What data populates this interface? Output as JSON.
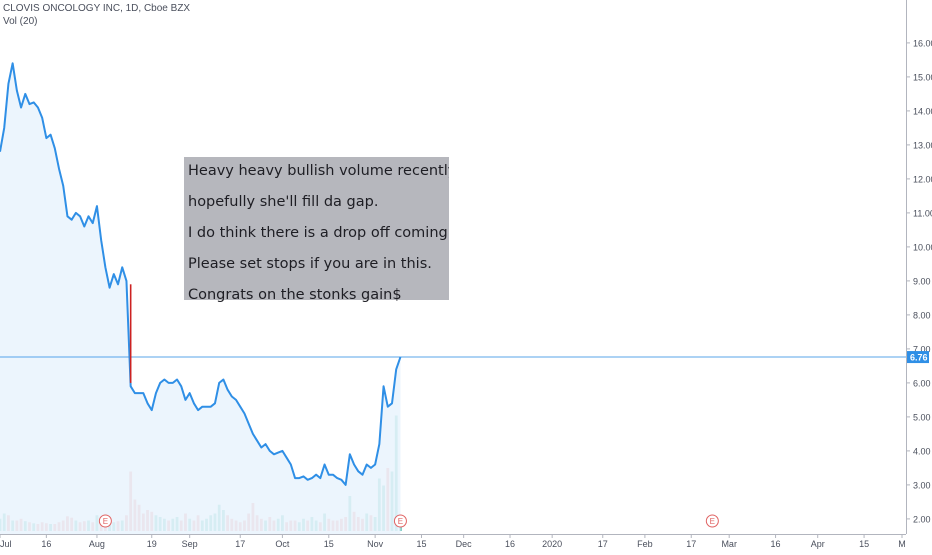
{
  "legend": {
    "title": "CLOVIS ONCOLOGY INC, 1D, Cboe BZX",
    "volume": "Vol (20)"
  },
  "note_lines": [
    "Heavy heavy bullish volume recently,",
    "hopefully she'll fill da gap.",
    "I do think there is a drop off coming soon",
    "Please set stops if you are in this.",
    "Congrats on the stonks gain$"
  ],
  "colors": {
    "line": "#2f8fe6",
    "area": "#e9f3fd",
    "vol_up": "#6fc7bd",
    "vol_down": "#f09a9a",
    "price_tag": "#2f8fe6",
    "annotation_line": "#cc2222",
    "earnings": "#e06363"
  },
  "chart_data": {
    "type": "line",
    "title": "CLOVIS ONCOLOGY INC, 1D, Cboe BZX",
    "ylim": [
      1.85,
      16.85
    ],
    "y_ticks": [
      2,
      3,
      4,
      5,
      6,
      7,
      8,
      9,
      10,
      11,
      12,
      13,
      14,
      15,
      16
    ],
    "y_tick_labels": [
      "2.00",
      "3.00",
      "4.00",
      "5.00",
      "6.00",
      "7.00",
      "8.00",
      "9.00",
      "10.00",
      "11.00",
      "12.00",
      "13.00",
      "14.00",
      "15.00",
      "16.00"
    ],
    "last_price": 6.76,
    "last_price_label": "6.76",
    "x_tick_labels": [
      "Jul",
      "16",
      "Aug",
      "19",
      "Sep",
      "17",
      "Oct",
      "15",
      "Nov",
      "15",
      "Dec",
      "16",
      "2020",
      "17",
      "Feb",
      "17",
      "Mar",
      "16",
      "Apr",
      "15",
      "M"
    ],
    "x_tick_index": [
      0,
      11,
      23,
      36,
      45,
      57,
      67,
      78,
      89,
      100,
      110,
      121,
      131,
      143,
      153,
      164,
      173,
      184,
      194,
      205,
      214
    ],
    "close": [
      12.8,
      13.5,
      14.8,
      15.4,
      14.6,
      14.1,
      14.5,
      14.2,
      14.25,
      14.1,
      13.8,
      13.2,
      13.3,
      12.9,
      12.3,
      11.8,
      10.9,
      10.8,
      11.0,
      10.9,
      10.6,
      10.9,
      10.7,
      11.2,
      10.2,
      9.4,
      8.8,
      9.2,
      8.9,
      9.4,
      9.0,
      5.9,
      5.7,
      5.7,
      5.7,
      5.4,
      5.2,
      5.7,
      6.0,
      6.1,
      6.0,
      6.0,
      6.1,
      5.9,
      5.5,
      5.7,
      5.4,
      5.2,
      5.3,
      5.3,
      5.3,
      5.4,
      6.0,
      6.1,
      5.8,
      5.6,
      5.5,
      5.3,
      5.1,
      4.8,
      4.5,
      4.3,
      4.1,
      4.2,
      4.0,
      3.9,
      3.95,
      4.0,
      3.8,
      3.6,
      3.2,
      3.2,
      3.25,
      3.15,
      3.2,
      3.3,
      3.2,
      3.6,
      3.3,
      3.3,
      3.2,
      3.15,
      3.0,
      3.9,
      3.6,
      3.4,
      3.3,
      3.6,
      3.5,
      3.6,
      4.2,
      5.9,
      5.3,
      5.4,
      6.4,
      6.76
    ],
    "volume": [
      0.35,
      0.5,
      0.45,
      0.3,
      0.3,
      0.35,
      0.28,
      0.25,
      0.22,
      0.2,
      0.25,
      0.22,
      0.2,
      0.2,
      0.25,
      0.3,
      0.42,
      0.38,
      0.3,
      0.25,
      0.28,
      0.3,
      0.25,
      0.45,
      0.35,
      0.3,
      0.22,
      0.25,
      0.28,
      0.3,
      0.45,
      1.7,
      0.9,
      0.75,
      0.5,
      0.6,
      0.55,
      0.45,
      0.4,
      0.35,
      0.3,
      0.35,
      0.4,
      0.3,
      0.5,
      0.35,
      0.3,
      0.45,
      0.3,
      0.35,
      0.45,
      0.5,
      0.75,
      0.6,
      0.45,
      0.35,
      0.3,
      0.25,
      0.3,
      0.5,
      0.8,
      0.45,
      0.35,
      0.3,
      0.4,
      0.3,
      0.35,
      0.45,
      0.25,
      0.3,
      0.3,
      0.25,
      0.35,
      0.3,
      0.4,
      0.3,
      0.25,
      0.5,
      0.35,
      0.3,
      0.3,
      0.35,
      0.4,
      1.0,
      0.55,
      0.4,
      0.35,
      0.5,
      0.45,
      0.4,
      1.5,
      1.3,
      1.8,
      1.7,
      3.3,
      0.4
    ],
    "volume_up": [
      1,
      1,
      0,
      1,
      0,
      0,
      1,
      0,
      1,
      0,
      0,
      0,
      1,
      0,
      0,
      0,
      0,
      0,
      1,
      0,
      0,
      1,
      0,
      1,
      0,
      0,
      1,
      1,
      0,
      1,
      0,
      0,
      0,
      0,
      0,
      0,
      0,
      1,
      1,
      1,
      0,
      1,
      1,
      0,
      0,
      1,
      0,
      0,
      1,
      1,
      1,
      1,
      1,
      1,
      0,
      0,
      0,
      0,
      0,
      0,
      0,
      0,
      0,
      1,
      0,
      0,
      1,
      1,
      0,
      0,
      0,
      1,
      1,
      0,
      1,
      1,
      0,
      1,
      0,
      0,
      0,
      0,
      0,
      1,
      0,
      0,
      0,
      1,
      0,
      1,
      1,
      1,
      0,
      1,
      1,
      1
    ],
    "annotation_vline": {
      "x_index": 31,
      "from": 6.0,
      "to": 8.9
    },
    "earnings_markers": [
      {
        "x_index": 25,
        "label": "E"
      },
      {
        "x_index": 95,
        "label": "E"
      },
      {
        "x_index": 169,
        "label": "E"
      }
    ]
  }
}
